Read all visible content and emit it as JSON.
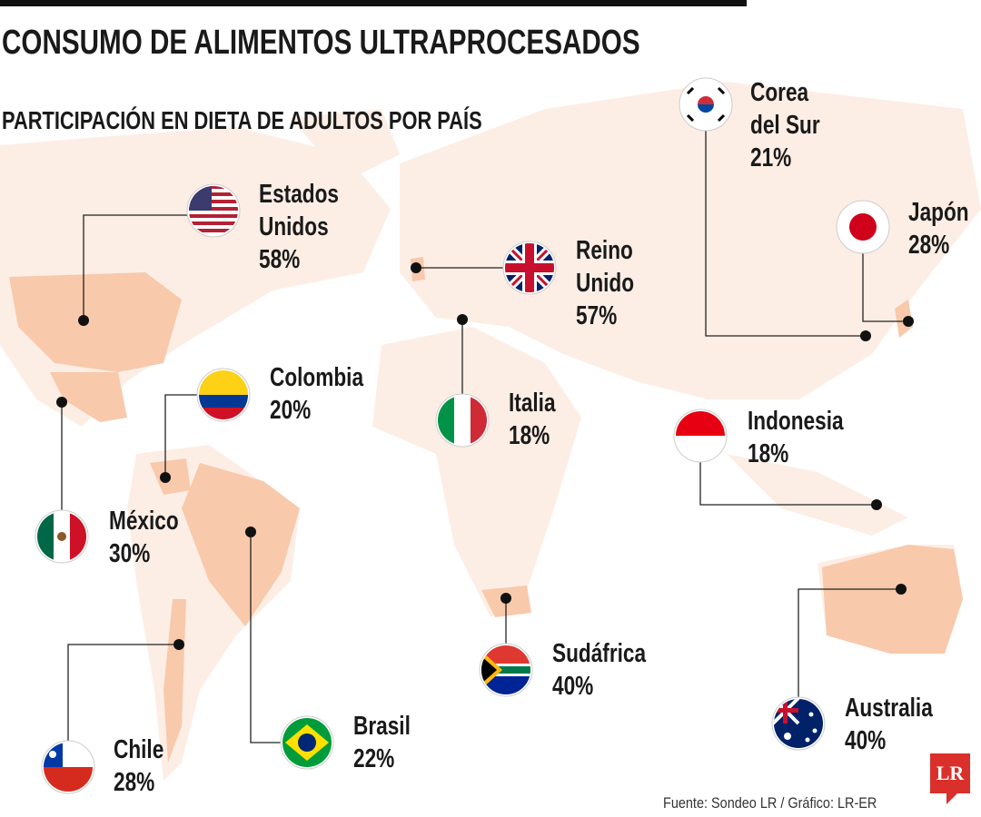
{
  "title": "CONSUMO DE ALIMENTOS ULTRAPROCESADOS",
  "subtitle": "PARTICIPACIÓN EN DIETA DE ADULTOS POR PAÍS",
  "colors": {
    "land": "#fdeee5",
    "highlight": "#f8c9ab",
    "line": "#222222",
    "logo": "#d9302c"
  },
  "countries": [
    {
      "name_lines": [
        "Estados",
        "Unidos"
      ],
      "value": "58%",
      "flag": "us-flag"
    },
    {
      "name_lines": [
        "Corea",
        "del Sur"
      ],
      "value": "21%",
      "flag": "south-korea-flag"
    },
    {
      "name_lines": [
        "Japón"
      ],
      "value": "28%",
      "flag": "japan-flag"
    },
    {
      "name_lines": [
        "Reino",
        "Unido"
      ],
      "value": "57%",
      "flag": "uk-flag"
    },
    {
      "name_lines": [
        "Colombia"
      ],
      "value": "20%",
      "flag": "colombia-flag"
    },
    {
      "name_lines": [
        "Italia"
      ],
      "value": "18%",
      "flag": "italy-flag"
    },
    {
      "name_lines": [
        "Indonesia"
      ],
      "value": "18%",
      "flag": "indonesia-flag"
    },
    {
      "name_lines": [
        "México"
      ],
      "value": "30%",
      "flag": "mexico-flag"
    },
    {
      "name_lines": [
        "Brasil"
      ],
      "value": "22%",
      "flag": "brazil-flag"
    },
    {
      "name_lines": [
        "Chile"
      ],
      "value": "28%",
      "flag": "chile-flag"
    },
    {
      "name_lines": [
        "Sudáfrica"
      ],
      "value": "40%",
      "flag": "south-africa-flag"
    },
    {
      "name_lines": [
        "Australia"
      ],
      "value": "40%",
      "flag": "australia-flag"
    }
  ],
  "source": "Fuente: Sondeo LR / Gráfico: LR-ER",
  "logo_text": "LR"
}
